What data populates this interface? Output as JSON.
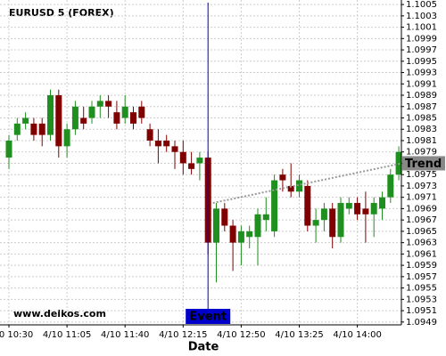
{
  "chart_data": {
    "type": "candlestick",
    "title": "EURUSD 5 (FOREX)",
    "watermark": "www.delkos.com",
    "x_label": "Date",
    "categories": [
      "4/10 10:30",
      null,
      null,
      null,
      null,
      null,
      null,
      "4/10 11:05",
      null,
      null,
      null,
      null,
      null,
      null,
      "4/10 11:40",
      null,
      null,
      null,
      null,
      null,
      null,
      "4/10 12:15",
      null,
      null,
      null,
      null,
      null,
      null,
      "4/10 12:50",
      null,
      null,
      null,
      null,
      null,
      null,
      "4/10 13:25",
      null,
      null,
      null,
      null,
      null,
      null,
      "4/10 14:00",
      null,
      null,
      null,
      null,
      null
    ],
    "open": [
      1.0978,
      1.0982,
      1.0984,
      1.0984,
      1.0984,
      1.0982,
      1.0989,
      1.098,
      1.0983,
      1.0985,
      1.0985,
      1.0987,
      1.0988,
      1.0986,
      1.0985,
      1.0986,
      1.0987,
      1.0983,
      1.0981,
      1.0981,
      1.098,
      1.0979,
      1.0977,
      1.0977,
      1.0978,
      1.0963,
      1.0969,
      1.0966,
      1.0963,
      1.0964,
      1.0964,
      1.0967,
      1.0965,
      1.0975,
      1.0973,
      1.0972,
      1.0973,
      1.0966,
      1.0967,
      1.0969,
      1.0964,
      1.0969,
      1.097,
      1.0969,
      1.0968,
      1.0969,
      1.0971,
      1.0975
    ],
    "high": [
      1.0982,
      1.0985,
      1.0986,
      1.0985,
      1.0985,
      1.099,
      1.099,
      1.0984,
      1.0988,
      1.0987,
      1.0988,
      1.0989,
      1.0989,
      1.0988,
      1.0989,
      1.0987,
      1.0988,
      1.0984,
      1.0983,
      1.0982,
      1.0981,
      1.0981,
      1.0979,
      1.0979,
      1.0979,
      1.097,
      1.097,
      1.0967,
      1.0966,
      1.0966,
      1.0969,
      1.0971,
      1.0975,
      1.0976,
      1.0977,
      1.0975,
      1.0974,
      1.0969,
      1.097,
      1.097,
      1.0971,
      1.0971,
      1.0971,
      1.0972,
      1.0971,
      1.0972,
      1.0976,
      1.098
    ],
    "low": [
      1.0976,
      1.0981,
      1.0983,
      1.0981,
      1.098,
      1.0981,
      1.0978,
      1.0978,
      1.0982,
      1.0983,
      1.0984,
      1.0985,
      1.0985,
      1.0983,
      1.0984,
      1.0983,
      1.0984,
      1.098,
      1.0977,
      1.0979,
      1.0976,
      1.0975,
      1.0975,
      1.0974,
      1.0961,
      1.0956,
      1.0965,
      1.0958,
      1.0959,
      1.0962,
      1.0959,
      1.0965,
      1.0964,
      1.0972,
      1.0971,
      1.0971,
      1.0965,
      1.0963,
      1.0965,
      1.0962,
      1.0963,
      1.0968,
      1.0967,
      1.0963,
      1.0964,
      1.0967,
      1.097,
      1.0974
    ],
    "close": [
      1.0981,
      1.0984,
      1.0985,
      1.0982,
      1.0982,
      1.0989,
      1.098,
      1.0983,
      1.0987,
      1.0984,
      1.0987,
      1.0988,
      1.0987,
      1.0984,
      1.0987,
      1.0984,
      1.0985,
      1.0981,
      1.098,
      1.098,
      1.0979,
      1.0977,
      1.0976,
      1.0978,
      1.0963,
      1.0969,
      1.0966,
      1.0963,
      1.0965,
      1.0965,
      1.0968,
      1.0968,
      1.0974,
      1.0974,
      1.0972,
      1.0974,
      1.0966,
      1.0967,
      1.0969,
      1.0964,
      1.097,
      1.097,
      1.0968,
      1.0968,
      1.097,
      1.0971,
      1.0975,
      1.0979
    ],
    "up_color": "#1f8f1f",
    "down_color": "#800000",
    "ylim": [
      1.09485,
      1.10058
    ],
    "yticks": [
      1.1005,
      1.1003,
      1.1001,
      1.0999,
      1.0997,
      1.0995,
      1.0993,
      1.0991,
      1.0989,
      1.0987,
      1.0985,
      1.0983,
      1.0981,
      1.0979,
      1.0977,
      1.0975,
      1.0973,
      1.0971,
      1.0969,
      1.0967,
      1.0965,
      1.0963,
      1.0961,
      1.0959,
      1.0957,
      1.0955,
      1.0953,
      1.0951,
      1.0949
    ],
    "grid": true,
    "event": {
      "label": "Event",
      "x": 24,
      "color": "#0000cc"
    },
    "trend": {
      "name": "Trend",
      "x": [
        24.6,
        47.4
      ],
      "values": [
        1.097,
        1.0977
      ],
      "color": "#999999"
    }
  }
}
